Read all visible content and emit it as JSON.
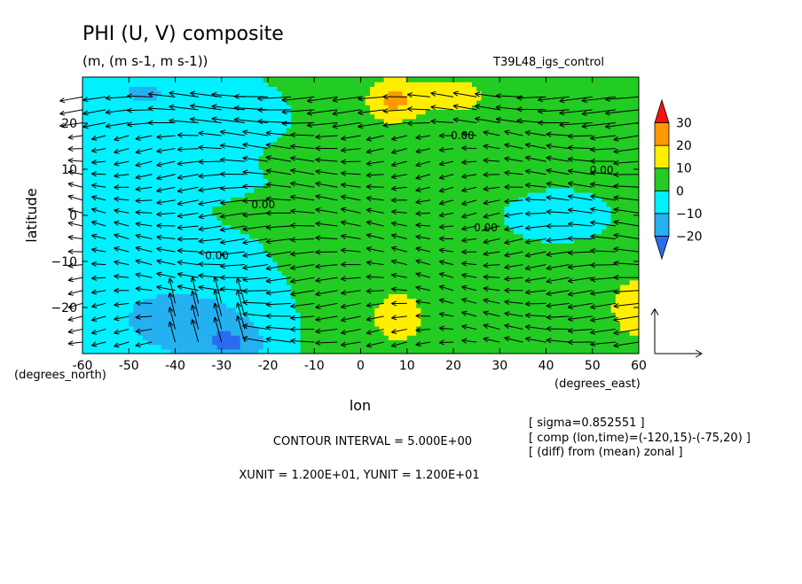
{
  "chart_data": {
    "type": "heatmap",
    "title": "PHI (U, V) composite",
    "subtitle": "(m, (m s-1, m s-1))",
    "run_label": "T39L48_igs_control",
    "xlabel": "lon",
    "ylabel": "latitude",
    "x_unit_label": "(degrees_east)",
    "y_unit_label": "(degrees_north)",
    "xlim": [
      -60,
      60
    ],
    "ylim": [
      -30,
      30
    ],
    "x_ticks": [
      -60,
      -50,
      -40,
      -30,
      -20,
      -10,
      0,
      10,
      20,
      30,
      40,
      50,
      60
    ],
    "y_ticks": [
      -20,
      -10,
      0,
      10,
      20
    ],
    "x_tick_labels": [
      "-60",
      "-50",
      "-40",
      "-30",
      "-20",
      "-10",
      "0",
      "10",
      "20",
      "30",
      "40",
      "50",
      "60"
    ],
    "y_tick_labels": [
      "−20",
      "−10",
      "0",
      "10",
      "20"
    ],
    "colorbar": {
      "levels": [
        -25,
        -20,
        -10,
        0,
        10,
        20,
        30,
        35
      ],
      "tick_values": [
        -20,
        -10,
        0,
        10,
        20,
        30
      ],
      "tick_labels": [
        "−20",
        "−10",
        "0",
        "10",
        "20",
        "30"
      ],
      "colors": [
        "#2a6cf0",
        "#25b0f0",
        "#00f0ff",
        "#22cc22",
        "#ffee00",
        "#ff9900",
        "#ff1010"
      ]
    },
    "zero_contour_labels": [
      {
        "lon": -21,
        "lat": 1.5,
        "text": "0.00"
      },
      {
        "lon": -31,
        "lat": -9.5,
        "text": "0.00"
      },
      {
        "lon": 27,
        "lat": -3.5,
        "text": "0.00"
      },
      {
        "lon": 22,
        "lat": 16.5,
        "text": "0.00"
      },
      {
        "lon": 52,
        "lat": 9,
        "text": "0.00"
      }
    ],
    "reference_vector": {
      "xunit": 12,
      "yunit": 12
    },
    "contour_interval": "CONTOUR INTERVAL = 5.000E+00",
    "unit_text": "XUNIT = 1.200E+01, YUNIT = 1.200E+01",
    "annotations": [
      "[ sigma=0.852551 ]",
      "[ comp (lon,time)=(-120,15)-(-75,20) ]",
      "[ (diff) from (mean) zonal ]"
    ]
  },
  "colors": {
    "frame": "#000000",
    "contour_line": "#000000"
  }
}
